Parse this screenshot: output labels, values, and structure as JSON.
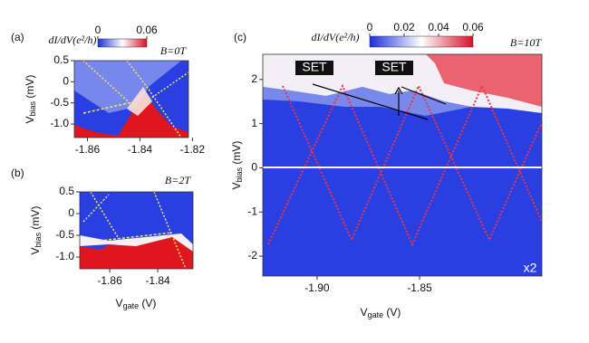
{
  "chart_data": [
    {
      "type": "heatmap",
      "panel_label": "(a)",
      "title": "B=0T",
      "xlabel": {
        "main": "V",
        "sub": "gate",
        "unit": " (V)"
      },
      "ylabel": {
        "main": "V",
        "sub": "bias",
        "unit": " (mV)"
      },
      "xlim": [
        -1.865,
        -1.8215
      ],
      "xticks": [
        -1.86,
        -1.84,
        -1.82
      ],
      "ylim": [
        -1.32,
        0.5
      ],
      "yticks": [
        0.5,
        0,
        -0.5,
        {
          "value": -1,
          "label": "-1.0"
        }
      ],
      "colorbar": {
        "label": {
          "main": "dI/dV",
          "unit": "(e²/h)"
        },
        "clim": [
          0,
          0.06
        ],
        "ticks": [
          0,
          0.06
        ]
      }
    },
    {
      "type": "heatmap",
      "panel_label": "(b)",
      "title": "B=2T",
      "xlabel": {
        "main": "V",
        "sub": "gate",
        "unit": " (V)"
      },
      "ylabel": {
        "main": "V",
        "sub": "bias",
        "unit": " (mV)"
      },
      "xlim": [
        -1.8725,
        -1.8253
      ],
      "xticks": [
        -1.86,
        -1.84
      ],
      "ylim": [
        -1.27,
        0.5
      ],
      "yticks": [
        0.5,
        0,
        -0.5,
        {
          "value": -1,
          "label": "-1.0"
        }
      ]
    },
    {
      "type": "heatmap",
      "panel_label": "(c)",
      "title": "B=10T",
      "xlabel": {
        "main": "V",
        "sub": "gate",
        "unit": " (V)"
      },
      "ylabel": {
        "main": "V",
        "sub": "bias",
        "unit": " (mV)"
      },
      "xlim": [
        -1.9265,
        -1.7903
      ],
      "xticks": [
        {
          "value": -1.9,
          "label": "-1.90"
        },
        -1.85
      ],
      "ylim": [
        -2.45,
        2.57
      ],
      "yticks": [
        -2,
        -1,
        0,
        1,
        2
      ],
      "colorbar": {
        "label": {
          "main": "dI/dV",
          "unit": "(e²/h)"
        },
        "clim": [
          0,
          0.06
        ],
        "ticks": [
          0,
          0.02,
          0.04,
          0.06
        ]
      },
      "annotations": [
        "SET",
        "SET",
        "x2"
      ]
    }
  ]
}
